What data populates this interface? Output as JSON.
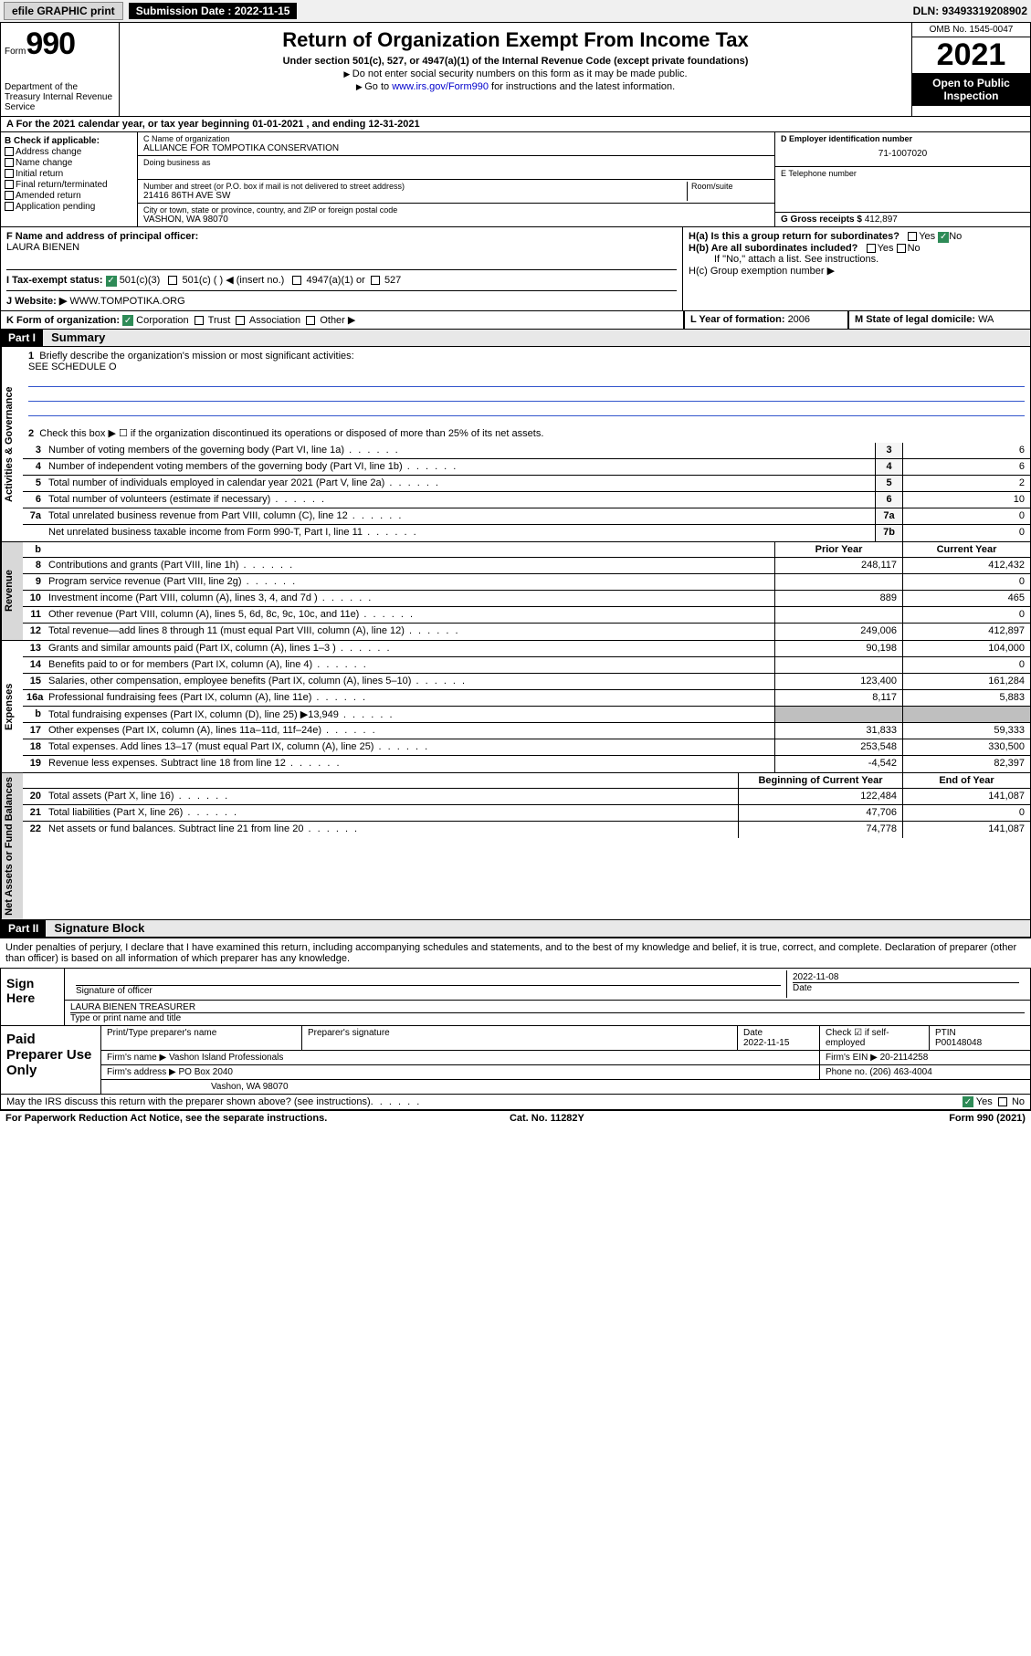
{
  "topbar": {
    "efile": "efile GRAPHIC print",
    "submission_label": "Submission Date : 2022-11-15",
    "dln": "DLN: 93493319208902"
  },
  "header": {
    "form_word": "Form",
    "form_number": "990",
    "dept": "Department of the Treasury Internal Revenue Service",
    "title": "Return of Organization Exempt From Income Tax",
    "subtitle": "Under section 501(c), 527, or 4947(a)(1) of the Internal Revenue Code (except private foundations)",
    "note1": "Do not enter social security numbers on this form as it may be made public.",
    "note2_pre": "Go to ",
    "note2_link": "www.irs.gov/Form990",
    "note2_post": " for instructions and the latest information.",
    "omb": "OMB No. 1545-0047",
    "year": "2021",
    "inspect": "Open to Public Inspection"
  },
  "row_a": "A For the 2021 calendar year, or tax year beginning 01-01-2021   , and ending 12-31-2021",
  "box_b": {
    "label": "B Check if applicable:",
    "items": [
      "Address change",
      "Name change",
      "Initial return",
      "Final return/terminated",
      "Amended return",
      "Application pending"
    ]
  },
  "box_c": {
    "name_lbl": "C Name of organization",
    "name": "ALLIANCE FOR TOMPOTIKA CONSERVATION",
    "dba_lbl": "Doing business as",
    "street_lbl": "Number and street (or P.O. box if mail is not delivered to street address)",
    "room_lbl": "Room/suite",
    "street": "21416 86TH AVE SW",
    "city_lbl": "City or town, state or province, country, and ZIP or foreign postal code",
    "city": "VASHON, WA  98070"
  },
  "box_d": {
    "ein_lbl": "D Employer identification number",
    "ein": "71-1007020",
    "phone_lbl": "E Telephone number",
    "gross_lbl": "G Gross receipts $ ",
    "gross": "412,897"
  },
  "box_f": {
    "lbl": "F Name and address of principal officer:",
    "name": "LAURA BIENEN"
  },
  "box_h": {
    "ha": "H(a)  Is this a group return for subordinates?",
    "hb": "H(b)  Are all subordinates included?",
    "hb_note": "If \"No,\" attach a list. See instructions.",
    "hc": "H(c)  Group exemption number ▶",
    "yes": "Yes",
    "no": "No"
  },
  "row_i": {
    "lbl": "I   Tax-exempt status:",
    "opt1": "501(c)(3)",
    "opt2": "501(c) (   ) ◀ (insert no.)",
    "opt3": "4947(a)(1) or",
    "opt4": "527"
  },
  "row_j": {
    "lbl": "J   Website: ▶",
    "val": "WWW.TOMPOTIKA.ORG"
  },
  "row_k": {
    "lbl": "K Form of organization:",
    "opts": [
      "Corporation",
      "Trust",
      "Association",
      "Other ▶"
    ],
    "l_lbl": "L Year of formation: ",
    "l_val": "2006",
    "m_lbl": "M State of legal domicile: ",
    "m_val": "WA"
  },
  "part1": {
    "hdr": "Part I",
    "title": "Summary"
  },
  "mission": {
    "q1_num": "1",
    "q1": "Briefly describe the organization's mission or most significant activities:",
    "q1_val": "SEE SCHEDULE O",
    "q2_num": "2",
    "q2": "Check this box ▶ ☐  if the organization discontinued its operations or disposed of more than 25% of its net assets."
  },
  "gov_lines": [
    {
      "n": "3",
      "t": "Number of voting members of the governing body (Part VI, line 1a)",
      "box": "3",
      "v": "6"
    },
    {
      "n": "4",
      "t": "Number of independent voting members of the governing body (Part VI, line 1b)",
      "box": "4",
      "v": "6"
    },
    {
      "n": "5",
      "t": "Total number of individuals employed in calendar year 2021 (Part V, line 2a)",
      "box": "5",
      "v": "2"
    },
    {
      "n": "6",
      "t": "Total number of volunteers (estimate if necessary)",
      "box": "6",
      "v": "10"
    },
    {
      "n": "7a",
      "t": "Total unrelated business revenue from Part VIII, column (C), line 12",
      "box": "7a",
      "v": "0"
    },
    {
      "n": "",
      "t": "Net unrelated business taxable income from Form 990-T, Part I, line 11",
      "box": "7b",
      "v": "0"
    }
  ],
  "col_hdrs": {
    "b": "b",
    "prior": "Prior Year",
    "current": "Current Year"
  },
  "revenue_lines": [
    {
      "n": "8",
      "t": "Contributions and grants (Part VIII, line 1h)",
      "p": "248,117",
      "c": "412,432"
    },
    {
      "n": "9",
      "t": "Program service revenue (Part VIII, line 2g)",
      "p": "",
      "c": "0"
    },
    {
      "n": "10",
      "t": "Investment income (Part VIII, column (A), lines 3, 4, and 7d )",
      "p": "889",
      "c": "465"
    },
    {
      "n": "11",
      "t": "Other revenue (Part VIII, column (A), lines 5, 6d, 8c, 9c, 10c, and 11e)",
      "p": "",
      "c": "0"
    },
    {
      "n": "12",
      "t": "Total revenue—add lines 8 through 11 (must equal Part VIII, column (A), line 12)",
      "p": "249,006",
      "c": "412,897"
    }
  ],
  "expense_lines": [
    {
      "n": "13",
      "t": "Grants and similar amounts paid (Part IX, column (A), lines 1–3 )",
      "p": "90,198",
      "c": "104,000"
    },
    {
      "n": "14",
      "t": "Benefits paid to or for members (Part IX, column (A), line 4)",
      "p": "",
      "c": "0"
    },
    {
      "n": "15",
      "t": "Salaries, other compensation, employee benefits (Part IX, column (A), lines 5–10)",
      "p": "123,400",
      "c": "161,284"
    },
    {
      "n": "16a",
      "t": "Professional fundraising fees (Part IX, column (A), line 11e)",
      "p": "8,117",
      "c": "5,883"
    },
    {
      "n": "b",
      "t": "Total fundraising expenses (Part IX, column (D), line 25) ▶13,949",
      "p": "shade",
      "c": "shade"
    },
    {
      "n": "17",
      "t": "Other expenses (Part IX, column (A), lines 11a–11d, 11f–24e)",
      "p": "31,833",
      "c": "59,333"
    },
    {
      "n": "18",
      "t": "Total expenses. Add lines 13–17 (must equal Part IX, column (A), line 25)",
      "p": "253,548",
      "c": "330,500"
    },
    {
      "n": "19",
      "t": "Revenue less expenses. Subtract line 18 from line 12",
      "p": "-4,542",
      "c": "82,397"
    }
  ],
  "net_hdrs": {
    "begin": "Beginning of Current Year",
    "end": "End of Year"
  },
  "net_lines": [
    {
      "n": "20",
      "t": "Total assets (Part X, line 16)",
      "p": "122,484",
      "c": "141,087"
    },
    {
      "n": "21",
      "t": "Total liabilities (Part X, line 26)",
      "p": "47,706",
      "c": "0"
    },
    {
      "n": "22",
      "t": "Net assets or fund balances. Subtract line 21 from line 20",
      "p": "74,778",
      "c": "141,087"
    }
  ],
  "vlabels": {
    "gov": "Activities & Governance",
    "rev": "Revenue",
    "exp": "Expenses",
    "net": "Net Assets or Fund Balances"
  },
  "part2": {
    "hdr": "Part II",
    "title": "Signature Block"
  },
  "sig": {
    "decl": "Under penalties of perjury, I declare that I have examined this return, including accompanying schedules and statements, and to the best of my knowledge and belief, it is true, correct, and complete. Declaration of preparer (other than officer) is based on all information of which preparer has any knowledge.",
    "sign_here": "Sign Here",
    "sig_officer_lbl": "Signature of officer",
    "date_lbl": "Date",
    "date": "2022-11-08",
    "name_title": "LAURA BIENEN  TREASURER",
    "name_title_lbl": "Type or print name and title"
  },
  "paid": {
    "title": "Paid Preparer Use Only",
    "h_name": "Print/Type preparer's name",
    "h_sig": "Preparer's signature",
    "h_date": "Date",
    "date": "2022-11-15",
    "h_check": "Check ☑ if self-employed",
    "h_ptin": "PTIN",
    "ptin": "P00148048",
    "firm_name_lbl": "Firm's name    ▶",
    "firm_name": "Vashon Island Professionals",
    "firm_ein_lbl": "Firm's EIN ▶",
    "firm_ein": "20-2114258",
    "firm_addr_lbl": "Firm's address ▶",
    "firm_addr": "PO Box 2040",
    "firm_addr2": "Vashon, WA  98070",
    "phone_lbl": "Phone no.",
    "phone": "(206) 463-4004"
  },
  "discuss": {
    "q": "May the IRS discuss this return with the preparer shown above? (see instructions)",
    "yes": "Yes",
    "no": "No"
  },
  "footer": {
    "left": "For Paperwork Reduction Act Notice, see the separate instructions.",
    "mid": "Cat. No. 11282Y",
    "right": "Form 990 (2021)"
  }
}
